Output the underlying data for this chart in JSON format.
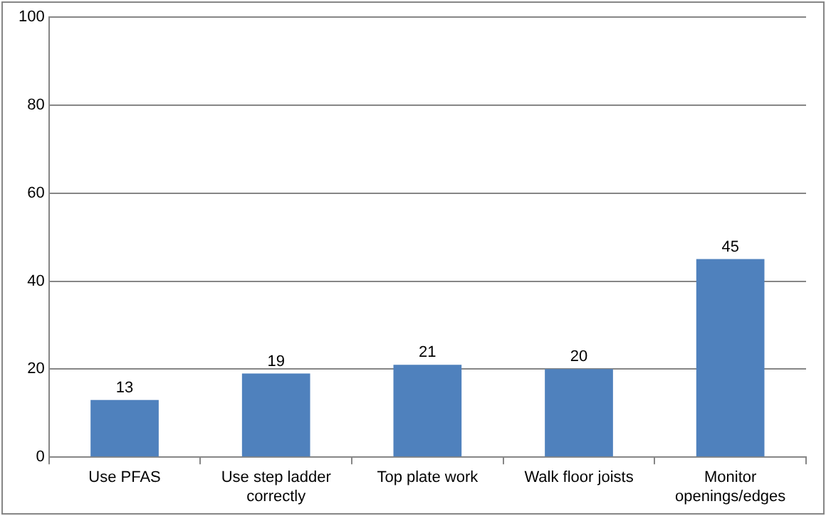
{
  "chart_data": {
    "type": "bar",
    "categories": [
      "Use PFAS",
      "Use step ladder correctly",
      "Top plate work",
      "Walk floor joists",
      "Monitor openings/edges"
    ],
    "values": [
      13,
      19,
      21,
      20,
      45
    ],
    "color": "#4f81bd",
    "ylim": [
      0,
      100
    ],
    "yticks": [
      0,
      20,
      40,
      60,
      80,
      100
    ],
    "grid": "y",
    "data_labels": true,
    "legend": false
  }
}
